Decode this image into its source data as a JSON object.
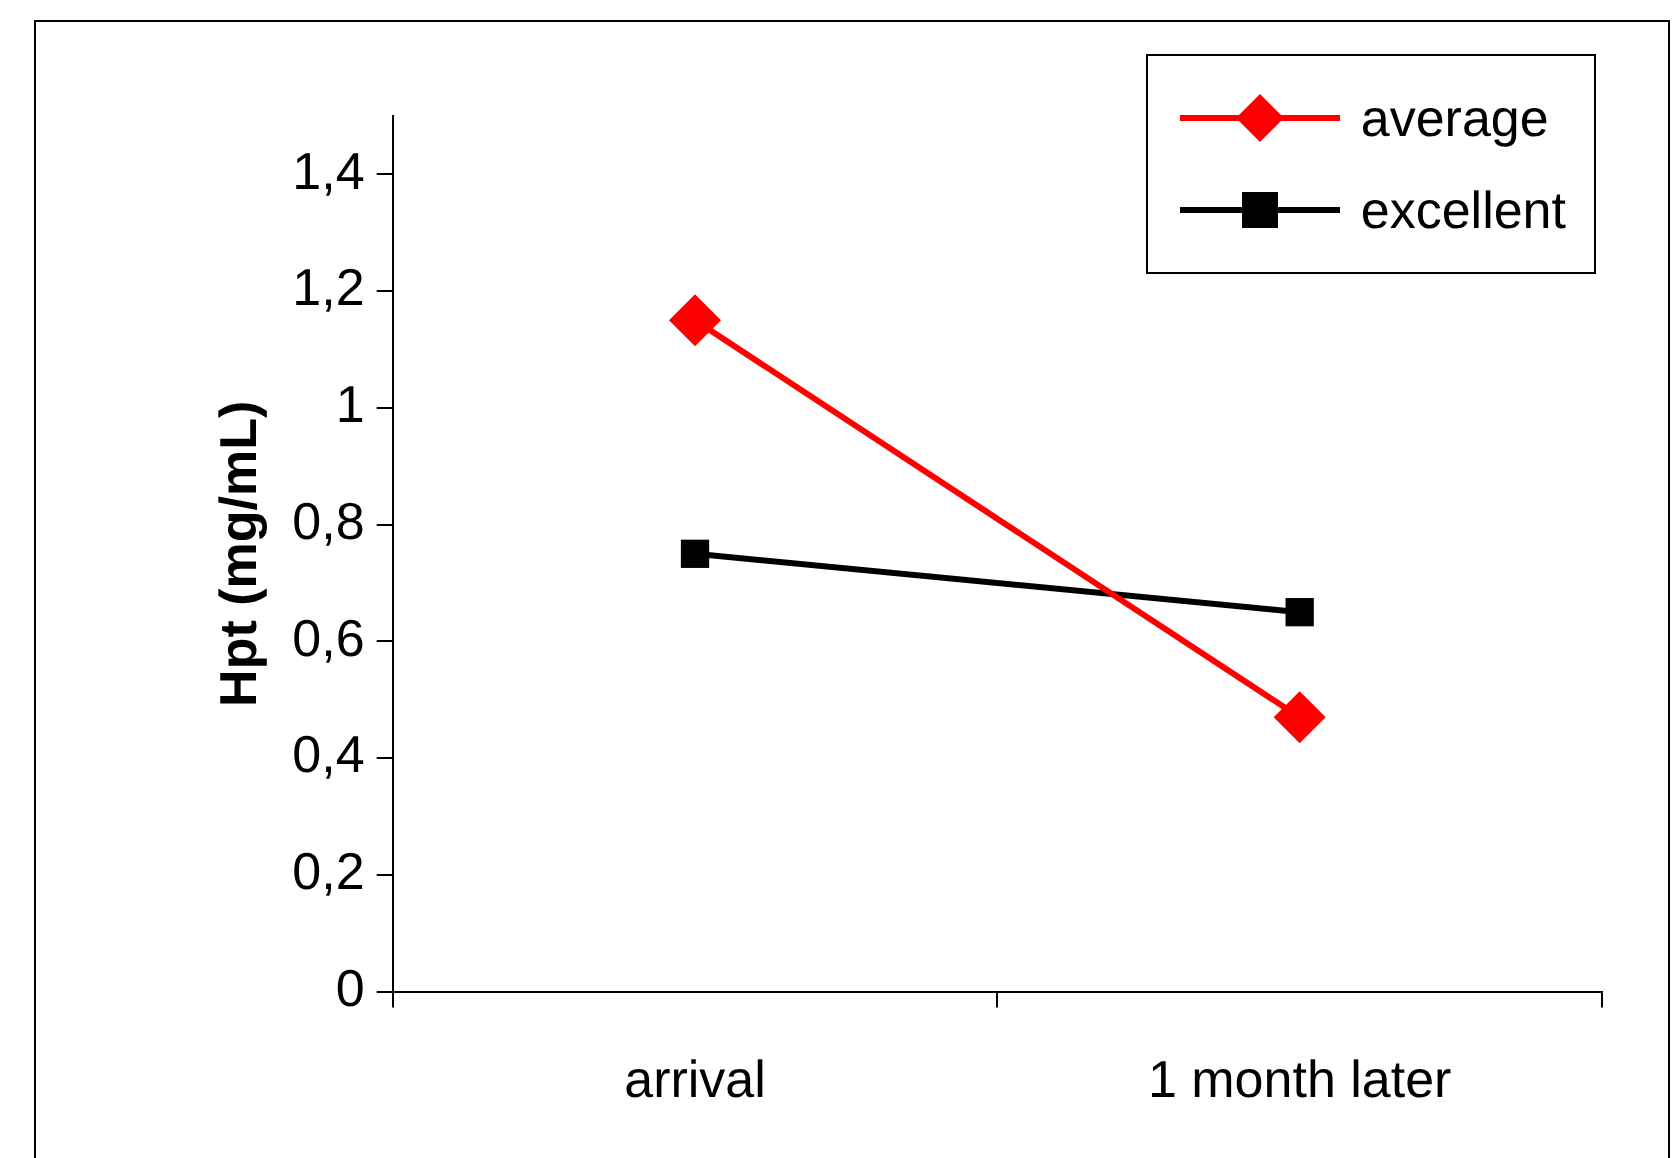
{
  "chart_data": {
    "type": "line",
    "ylabel": "Hpt (mg/mL)",
    "categories": [
      "arrival",
      "1 month later"
    ],
    "series": [
      {
        "name": "average",
        "color": "#ff0000",
        "marker": "diamond",
        "values": [
          1.15,
          0.47
        ]
      },
      {
        "name": "excellent",
        "color": "#000000",
        "marker": "square",
        "values": [
          0.75,
          0.65
        ]
      }
    ],
    "ylim": [
      0,
      1.5
    ],
    "yticks": [
      0,
      {
        "value": 0.2,
        "label": "0,2"
      },
      {
        "value": 0.4,
        "label": "0,4"
      },
      {
        "value": 0.6,
        "label": "0,6"
      },
      {
        "value": 0.8,
        "label": "0,8"
      },
      1,
      {
        "value": 1.2,
        "label": "1,2"
      },
      {
        "value": 1.4,
        "label": "1,4"
      }
    ],
    "grid": false,
    "legend": "top right",
    "line_style": "solid"
  }
}
